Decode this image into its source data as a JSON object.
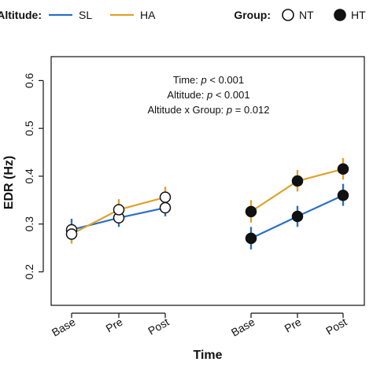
{
  "legend": {
    "altitude_label": "Altitude:",
    "sl_label": "SL",
    "ha_label": "HA",
    "group_label": "Group:",
    "nt_label": "NT",
    "ht_label": "HT"
  },
  "colors": {
    "SL": "#2a6fc9",
    "HA": "#e0a22a",
    "axis": "#111111"
  },
  "annotations": [
    {
      "plain": "Time: ",
      "italic": "p",
      "rest": " < 0.001"
    },
    {
      "plain": "Altitude: ",
      "italic": "p",
      "rest": " < 0.001"
    },
    {
      "plain": "Altitude x Group: ",
      "italic": "p",
      "rest": " = 0.012"
    }
  ],
  "chart_data": {
    "type": "line",
    "xlabel": "Time",
    "ylabel": "EDR (Hz)",
    "ylim": [
      0.2,
      0.6
    ],
    "yticks": [
      "0.2",
      "0.3",
      "0.4",
      "0.5",
      "0.6"
    ],
    "categories": [
      "Base",
      "Pre",
      "Post"
    ],
    "panels": [
      {
        "group": "NT",
        "marker": "open",
        "series": [
          {
            "name": "SL",
            "values": [
              0.288,
              0.313,
              0.334
            ],
            "err_low": [
              0.27,
              0.294,
              0.316
            ],
            "err_high": [
              0.311,
              0.331,
              0.354
            ]
          },
          {
            "name": "HA",
            "values": [
              0.279,
              0.33,
              0.356
            ],
            "err_low": [
              0.259,
              0.31,
              0.336
            ],
            "err_high": [
              0.299,
              0.352,
              0.378
            ]
          }
        ]
      },
      {
        "group": "HT",
        "marker": "filled",
        "series": [
          {
            "name": "SL",
            "values": [
              0.27,
              0.316,
              0.36
            ],
            "err_low": [
              0.247,
              0.294,
              0.338
            ],
            "err_high": [
              0.294,
              0.338,
              0.384
            ]
          },
          {
            "name": "HA",
            "values": [
              0.326,
              0.39,
              0.415
            ],
            "err_low": [
              0.303,
              0.368,
              0.393
            ],
            "err_high": [
              0.35,
              0.413,
              0.438
            ]
          }
        ]
      }
    ]
  }
}
